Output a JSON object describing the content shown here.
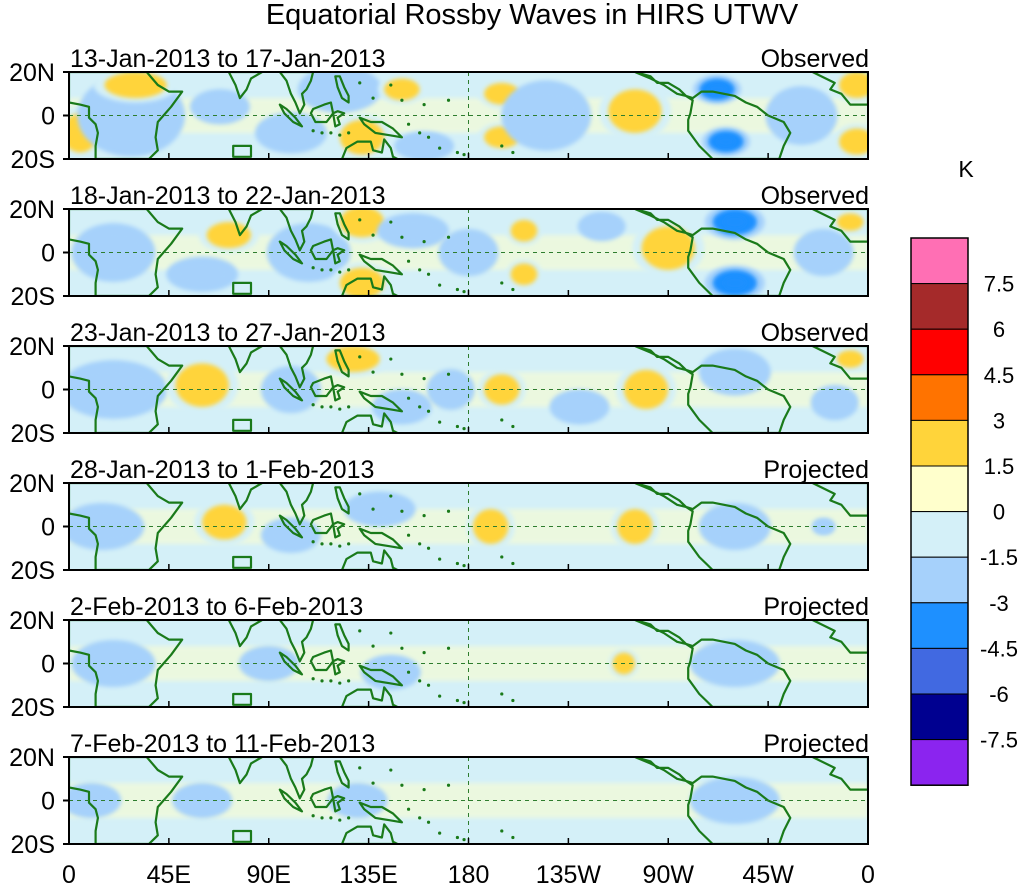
{
  "chart_data": {
    "type": "heatmap",
    "title": "Equatorial Rossby Waves in HIRS UTWV",
    "unit": "K",
    "xlabel": "",
    "ylabel": "",
    "x_ticks": [
      "0",
      "45E",
      "90E",
      "135E",
      "180",
      "135W",
      "90W",
      "45W",
      "0"
    ],
    "x_range_deg": [
      0,
      360
    ],
    "y_ticks": [
      "20N",
      "0",
      "20S"
    ],
    "y_range_deg": [
      -20,
      20
    ],
    "colorbar": {
      "levels": [
        "7.5",
        "6",
        "4.5",
        "3",
        "1.5",
        "0",
        "-1.5",
        "-3",
        "-4.5",
        "-6",
        "-7.5"
      ],
      "colors": [
        "#ff6fb4",
        "#a52a2a",
        "#ff0000",
        "#ff7300",
        "#ffd43a",
        "#ffffcc",
        "#d4f0f8",
        "#a6d1fb",
        "#1e90ff",
        "#4169e1",
        "#000090",
        "#8b24ef"
      ]
    },
    "panels": [
      {
        "period": "13-Jan-2013 to 17-Jan-2013",
        "status": "Observed",
        "anomalies": [
          {
            "lon": 5,
            "lat": -8,
            "rx": 8,
            "ry": 9,
            "level": 1
          },
          {
            "lon": 28,
            "lat": 0,
            "rx": 18,
            "ry": 14,
            "level": -1
          },
          {
            "lon": 30,
            "lat": 14,
            "rx": 14,
            "ry": 6,
            "level": 1
          },
          {
            "lon": 68,
            "lat": 4,
            "rx": 10,
            "ry": 6,
            "level": -1
          },
          {
            "lon": 100,
            "lat": -8,
            "rx": 12,
            "ry": 7,
            "level": -1
          },
          {
            "lon": 122,
            "lat": 12,
            "rx": 14,
            "ry": 8,
            "level": -1
          },
          {
            "lon": 132,
            "lat": -10,
            "rx": 10,
            "ry": 8,
            "level": 1
          },
          {
            "lon": 150,
            "lat": 12,
            "rx": 8,
            "ry": 5,
            "level": 1
          },
          {
            "lon": 160,
            "lat": -14,
            "rx": 10,
            "ry": 5,
            "level": -1
          },
          {
            "lon": 195,
            "lat": 10,
            "rx": 8,
            "ry": 5,
            "level": 1
          },
          {
            "lon": 195,
            "lat": -10,
            "rx": 8,
            "ry": 5,
            "level": 1
          },
          {
            "lon": 215,
            "lat": 0,
            "rx": 15,
            "ry": 12,
            "level": -1
          },
          {
            "lon": 255,
            "lat": 2,
            "rx": 12,
            "ry": 10,
            "level": 1
          },
          {
            "lon": 292,
            "lat": 12,
            "rx": 8,
            "ry": 5,
            "level": -2
          },
          {
            "lon": 296,
            "lat": -12,
            "rx": 8,
            "ry": 5,
            "level": -2
          },
          {
            "lon": 330,
            "lat": 0,
            "rx": 12,
            "ry": 10,
            "level": -1
          },
          {
            "lon": 355,
            "lat": 14,
            "rx": 8,
            "ry": 6,
            "level": 1
          },
          {
            "lon": 355,
            "lat": -12,
            "rx": 8,
            "ry": 6,
            "level": 1
          }
        ]
      },
      {
        "period": "18-Jan-2013 to 22-Jan-2013",
        "status": "Observed",
        "anomalies": [
          {
            "lon": 20,
            "lat": 0,
            "rx": 14,
            "ry": 10,
            "level": -1
          },
          {
            "lon": 60,
            "lat": -10,
            "rx": 12,
            "ry": 6,
            "level": -1
          },
          {
            "lon": 72,
            "lat": 8,
            "rx": 10,
            "ry": 6,
            "level": 1
          },
          {
            "lon": 108,
            "lat": 0,
            "rx": 14,
            "ry": 10,
            "level": -1
          },
          {
            "lon": 132,
            "lat": 14,
            "rx": 10,
            "ry": 7,
            "level": 1
          },
          {
            "lon": 132,
            "lat": -14,
            "rx": 10,
            "ry": 7,
            "level": 1
          },
          {
            "lon": 155,
            "lat": 10,
            "rx": 12,
            "ry": 6,
            "level": -1
          },
          {
            "lon": 180,
            "lat": 0,
            "rx": 10,
            "ry": 8,
            "level": -1
          },
          {
            "lon": 205,
            "lat": 10,
            "rx": 6,
            "ry": 5,
            "level": 1
          },
          {
            "lon": 205,
            "lat": -10,
            "rx": 6,
            "ry": 5,
            "level": 1
          },
          {
            "lon": 240,
            "lat": 12,
            "rx": 8,
            "ry": 5,
            "level": -1
          },
          {
            "lon": 270,
            "lat": 2,
            "rx": 12,
            "ry": 10,
            "level": 1
          },
          {
            "lon": 300,
            "lat": 14,
            "rx": 10,
            "ry": 6,
            "level": -2
          },
          {
            "lon": 300,
            "lat": -14,
            "rx": 10,
            "ry": 6,
            "level": -2
          },
          {
            "lon": 340,
            "lat": 0,
            "rx": 10,
            "ry": 8,
            "level": -1
          },
          {
            "lon": 352,
            "lat": 14,
            "rx": 6,
            "ry": 4,
            "level": 1
          }
        ]
      },
      {
        "period": "23-Jan-2013 to 27-Jan-2013",
        "status": "Observed",
        "anomalies": [
          {
            "lon": 20,
            "lat": 0,
            "rx": 18,
            "ry": 10,
            "level": -1
          },
          {
            "lon": 60,
            "lat": 2,
            "rx": 12,
            "ry": 10,
            "level": 1
          },
          {
            "lon": 100,
            "lat": 0,
            "rx": 10,
            "ry": 8,
            "level": -1
          },
          {
            "lon": 128,
            "lat": 14,
            "rx": 12,
            "ry": 6,
            "level": 1
          },
          {
            "lon": 150,
            "lat": -8,
            "rx": 10,
            "ry": 6,
            "level": -1
          },
          {
            "lon": 172,
            "lat": 0,
            "rx": 8,
            "ry": 7,
            "level": -1
          },
          {
            "lon": 195,
            "lat": 0,
            "rx": 8,
            "ry": 7,
            "level": 1
          },
          {
            "lon": 230,
            "lat": -8,
            "rx": 10,
            "ry": 6,
            "level": -1
          },
          {
            "lon": 260,
            "lat": 0,
            "rx": 10,
            "ry": 9,
            "level": 1
          },
          {
            "lon": 300,
            "lat": 8,
            "rx": 12,
            "ry": 8,
            "level": -1
          },
          {
            "lon": 345,
            "lat": -6,
            "rx": 8,
            "ry": 6,
            "level": -1
          },
          {
            "lon": 352,
            "lat": 14,
            "rx": 6,
            "ry": 4,
            "level": 1
          }
        ]
      },
      {
        "period": "28-Jan-2013 to 1-Feb-2013",
        "status": "Projected",
        "anomalies": [
          {
            "lon": 15,
            "lat": 0,
            "rx": 14,
            "ry": 8,
            "level": -1
          },
          {
            "lon": 70,
            "lat": 2,
            "rx": 10,
            "ry": 8,
            "level": 1
          },
          {
            "lon": 100,
            "lat": -4,
            "rx": 10,
            "ry": 6,
            "level": -1
          },
          {
            "lon": 140,
            "lat": 8,
            "rx": 12,
            "ry": 6,
            "level": -1
          },
          {
            "lon": 190,
            "lat": 0,
            "rx": 8,
            "ry": 8,
            "level": 1
          },
          {
            "lon": 255,
            "lat": 0,
            "rx": 8,
            "ry": 8,
            "level": 1
          },
          {
            "lon": 300,
            "lat": 0,
            "rx": 12,
            "ry": 8,
            "level": -1
          },
          {
            "lon": 340,
            "lat": 0,
            "rx": 4,
            "ry": 3,
            "level": -1
          }
        ]
      },
      {
        "period": "2-Feb-2013 to 6-Feb-2013",
        "status": "Projected",
        "anomalies": [
          {
            "lon": 20,
            "lat": 0,
            "rx": 14,
            "ry": 8,
            "level": -1
          },
          {
            "lon": 90,
            "lat": 0,
            "rx": 10,
            "ry": 6,
            "level": -1
          },
          {
            "lon": 145,
            "lat": -4,
            "rx": 10,
            "ry": 6,
            "level": -1
          },
          {
            "lon": 250,
            "lat": 0,
            "rx": 5,
            "ry": 5,
            "level": 1
          },
          {
            "lon": 300,
            "lat": 0,
            "rx": 15,
            "ry": 8,
            "level": -1
          }
        ]
      },
      {
        "period": "7-Feb-2013 to 11-Feb-2013",
        "status": "Projected",
        "anomalies": [
          {
            "lon": 10,
            "lat": 0,
            "rx": 10,
            "ry": 6,
            "level": -1
          },
          {
            "lon": 60,
            "lat": 0,
            "rx": 10,
            "ry": 6,
            "level": -1
          },
          {
            "lon": 130,
            "lat": 0,
            "rx": 10,
            "ry": 6,
            "level": -1
          },
          {
            "lon": 300,
            "lat": 0,
            "rx": 15,
            "ry": 8,
            "level": -1
          }
        ]
      }
    ]
  }
}
